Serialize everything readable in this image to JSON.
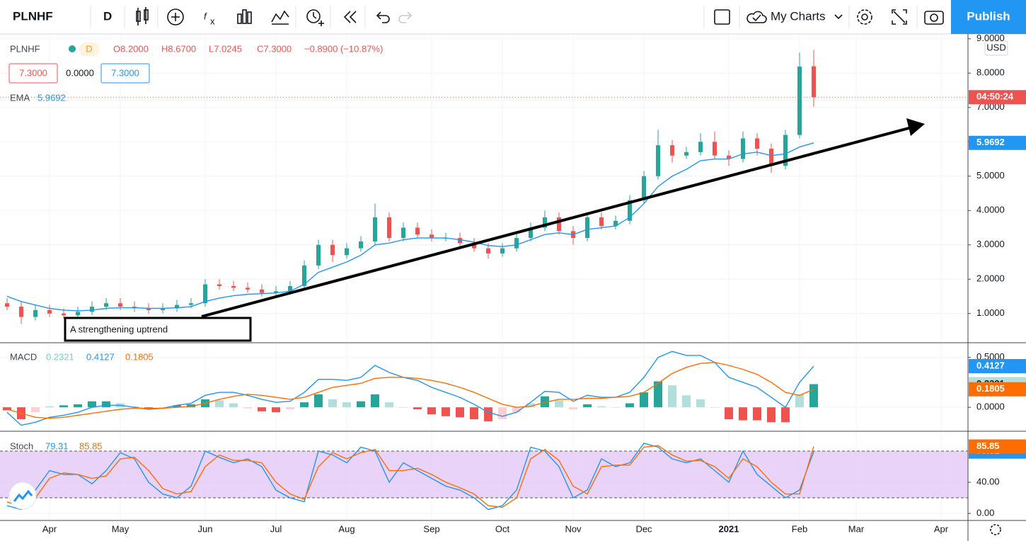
{
  "toolbar": {
    "symbol": "PLNHF",
    "interval": "D",
    "charts": "My Charts",
    "publish": "Publish"
  },
  "chart_data": [
    {
      "type": "candlestick",
      "title": "PLNHF",
      "interval": "D",
      "ohlc_labels": [
        "O8.2000",
        "H8.6700",
        "L7.0245",
        "C7.3000"
      ],
      "change_label": "−0.8900 (−10.87%)",
      "price_boxes": [
        "7.3000",
        "0.0000",
        "7.3000"
      ],
      "currency": "USD",
      "countdown": "04:50:24",
      "annotation": "A strengthening uptrend",
      "categories": [
        null,
        null,
        null,
        "Apr",
        null,
        null,
        null,
        null,
        "May",
        null,
        null,
        null,
        null,
        null,
        "Jun",
        null,
        null,
        null,
        null,
        "Jul",
        null,
        null,
        null,
        null,
        "Aug",
        null,
        null,
        null,
        null,
        null,
        "Sep",
        null,
        null,
        null,
        null,
        "Oct",
        null,
        null,
        null,
        null,
        "Nov",
        null,
        null,
        null,
        null,
        "Dec",
        null,
        null,
        null,
        null,
        null,
        "2021",
        null,
        null,
        null,
        null,
        "Feb",
        null,
        null,
        null,
        "Mar",
        null,
        null,
        null,
        null,
        null,
        "Apr",
        null
      ],
      "open": [
        1.3,
        1.2,
        0.9,
        1.1,
        1.0,
        0.95,
        1.05,
        1.2,
        1.3,
        1.2,
        1.15,
        1.1,
        1.15,
        1.25,
        1.3,
        1.85,
        1.8,
        1.75,
        1.7,
        1.6,
        1.65,
        1.8,
        2.4,
        3.0,
        2.7,
        2.9,
        3.1,
        3.8,
        3.2,
        3.5,
        3.3,
        3.2,
        3.2,
        3.05,
        2.9,
        2.75,
        2.9,
        3.2,
        3.5,
        3.8,
        3.4,
        3.2,
        3.8,
        3.55,
        3.7,
        4.3,
        5.0,
        5.9,
        5.6,
        5.7,
        6.0,
        5.6,
        5.5,
        6.1,
        5.8,
        5.3,
        6.2,
        8.2,
        null,
        null,
        null,
        null,
        null,
        null,
        null,
        null,
        null,
        null
      ],
      "high": [
        1.45,
        1.35,
        1.25,
        1.25,
        1.15,
        1.2,
        1.35,
        1.45,
        1.45,
        1.35,
        1.3,
        1.3,
        1.4,
        1.45,
        2.0,
        2.0,
        1.95,
        1.9,
        1.85,
        1.8,
        1.95,
        2.55,
        3.15,
        3.15,
        3.05,
        3.25,
        4.2,
        3.95,
        3.65,
        3.65,
        3.45,
        3.35,
        3.35,
        3.2,
        3.05,
        3.05,
        3.35,
        3.65,
        4.0,
        3.95,
        3.55,
        3.95,
        3.95,
        3.85,
        4.45,
        5.15,
        6.35,
        6.05,
        5.85,
        6.25,
        6.3,
        5.75,
        6.3,
        6.25,
        5.95,
        6.35,
        8.6,
        8.67,
        null,
        null,
        null,
        null,
        null,
        null,
        null,
        null,
        null,
        null
      ],
      "low": [
        1.1,
        0.7,
        0.8,
        0.9,
        0.85,
        0.85,
        0.95,
        1.1,
        1.1,
        1.05,
        1.0,
        1.0,
        1.05,
        1.15,
        1.2,
        1.7,
        1.65,
        1.6,
        1.5,
        1.5,
        1.55,
        1.7,
        2.3,
        2.5,
        2.6,
        2.8,
        3.0,
        3.1,
        3.1,
        3.2,
        3.1,
        3.1,
        2.95,
        2.8,
        2.6,
        2.65,
        2.8,
        3.1,
        3.4,
        3.3,
        3.0,
        3.1,
        3.45,
        3.45,
        3.6,
        4.2,
        4.9,
        5.4,
        5.5,
        5.6,
        5.5,
        5.3,
        5.4,
        5.6,
        5.1,
        5.2,
        6.1,
        7.0245,
        null,
        null,
        null,
        null,
        null,
        null,
        null,
        null,
        null,
        null
      ],
      "close": [
        1.2,
        0.9,
        1.1,
        1.0,
        0.95,
        1.05,
        1.2,
        1.3,
        1.2,
        1.15,
        1.1,
        1.15,
        1.25,
        1.3,
        1.85,
        1.8,
        1.75,
        1.7,
        1.6,
        1.65,
        1.8,
        2.4,
        3.0,
        2.7,
        2.9,
        3.1,
        3.8,
        3.2,
        3.5,
        3.3,
        3.2,
        3.2,
        3.05,
        2.9,
        2.75,
        2.9,
        3.2,
        3.5,
        3.8,
        3.4,
        3.2,
        3.8,
        3.55,
        3.7,
        4.3,
        5.0,
        5.9,
        5.6,
        5.7,
        6.0,
        5.6,
        5.5,
        6.1,
        5.8,
        5.3,
        6.2,
        8.19,
        7.3,
        null,
        null,
        null,
        null,
        null,
        null,
        null,
        null,
        null,
        null
      ],
      "up_color": "#26a69a",
      "down_color": "#ef5350",
      "series": [
        {
          "name": "EMA",
          "color": "#2196f3",
          "values": [
            1.5,
            1.35,
            1.25,
            1.15,
            1.1,
            1.08,
            1.1,
            1.15,
            1.17,
            1.17,
            1.15,
            1.15,
            1.17,
            1.2,
            1.35,
            1.45,
            1.52,
            1.56,
            1.58,
            1.6,
            1.65,
            1.85,
            2.2,
            2.35,
            2.5,
            2.7,
            3.0,
            3.05,
            3.15,
            3.2,
            3.2,
            3.2,
            3.15,
            3.08,
            2.98,
            2.95,
            3.0,
            3.15,
            3.3,
            3.35,
            3.3,
            3.45,
            3.5,
            3.55,
            3.8,
            4.2,
            4.7,
            5.0,
            5.2,
            5.45,
            5.5,
            5.5,
            5.65,
            5.7,
            5.6,
            5.65,
            5.85,
            5.9692,
            null,
            null,
            null,
            null,
            null,
            null,
            null,
            null,
            null,
            null
          ]
        }
      ],
      "ylim": [
        0.15,
        9.14
      ],
      "yticks": [
        {
          "value": 1,
          "label": "1.0000"
        },
        {
          "value": 2,
          "label": "2.0000"
        },
        {
          "value": 3,
          "label": "3.0000"
        },
        {
          "value": 4,
          "label": "4.0000"
        },
        {
          "value": 5,
          "label": "5.0000"
        },
        {
          "value": 6,
          "label": "6.0000"
        },
        {
          "value": 7,
          "label": "7.0000"
        },
        {
          "value": 8,
          "label": "8.0000"
        },
        {
          "value": 9,
          "label": "9.0000"
        }
      ],
      "grid": true
    },
    {
      "type": "macd",
      "title": "MACD",
      "series": [
        {
          "color": "#26a69a",
          "values": [
            -0.03,
            -0.12,
            -0.05,
            0.01,
            0.02,
            0.03,
            0.06,
            0.06,
            0.04,
            0.01,
            -0.01,
            0.0,
            0.02,
            0.03,
            0.08,
            0.07,
            0.04,
            -0.01,
            -0.04,
            -0.05,
            -0.02,
            0.05,
            0.13,
            0.08,
            0.05,
            0.06,
            0.13,
            0.05,
            0.0,
            -0.02,
            -0.07,
            -0.09,
            -0.1,
            -0.12,
            -0.14,
            -0.12,
            -0.05,
            0.04,
            0.11,
            0.07,
            -0.02,
            0.03,
            0.01,
            0.0,
            0.04,
            0.15,
            0.26,
            0.22,
            0.12,
            0.08,
            0.0,
            -0.12,
            -0.13,
            -0.13,
            -0.15,
            -0.15,
            0.13,
            0.2321,
            null,
            null,
            null,
            null,
            null,
            null,
            null,
            null,
            null,
            null
          ]
        },
        {
          "color": "#2196f3",
          "values": [
            -0.05,
            -0.18,
            -0.15,
            -0.1,
            -0.08,
            -0.05,
            0.0,
            0.02,
            0.02,
            0.0,
            -0.02,
            -0.01,
            0.02,
            0.04,
            0.12,
            0.15,
            0.15,
            0.12,
            0.08,
            0.05,
            0.06,
            0.15,
            0.28,
            0.28,
            0.27,
            0.3,
            0.42,
            0.35,
            0.3,
            0.27,
            0.2,
            0.15,
            0.1,
            0.03,
            -0.05,
            -0.09,
            -0.05,
            0.05,
            0.16,
            0.15,
            0.06,
            0.12,
            0.1,
            0.1,
            0.15,
            0.3,
            0.5,
            0.56,
            0.52,
            0.52,
            0.45,
            0.3,
            0.25,
            0.2,
            0.1,
            0.0,
            0.25,
            0.4127,
            null,
            null,
            null,
            null,
            null,
            null,
            null,
            null,
            null,
            null
          ]
        },
        {
          "color": "#ff6d00",
          "values": [
            -0.02,
            -0.06,
            -0.1,
            -0.11,
            -0.1,
            -0.08,
            -0.06,
            -0.04,
            -0.02,
            -0.01,
            -0.01,
            -0.01,
            0.0,
            0.01,
            0.04,
            0.08,
            0.11,
            0.13,
            0.12,
            0.1,
            0.08,
            0.1,
            0.15,
            0.2,
            0.22,
            0.24,
            0.29,
            0.3,
            0.3,
            0.29,
            0.27,
            0.24,
            0.2,
            0.15,
            0.09,
            0.03,
            0.0,
            0.01,
            0.05,
            0.08,
            0.08,
            0.09,
            0.09,
            0.1,
            0.11,
            0.15,
            0.24,
            0.34,
            0.4,
            0.44,
            0.45,
            0.42,
            0.38,
            0.33,
            0.25,
            0.15,
            0.12,
            0.1805,
            null,
            null,
            null,
            null,
            null,
            null,
            null,
            null,
            null,
            null
          ]
        }
      ],
      "ylim": [
        -0.24,
        0.64
      ],
      "yticks": [
        {
          "value": 0,
          "label": "0.0000"
        },
        {
          "value": 0.5,
          "label": "0.5000"
        }
      ]
    },
    {
      "type": "stoch",
      "title": "Stoch",
      "series": [
        {
          "color": "#2196f3",
          "values": [
            10,
            5,
            30,
            55,
            50,
            50,
            38,
            55,
            78,
            70,
            40,
            25,
            20,
            35,
            80,
            72,
            65,
            70,
            60,
            30,
            20,
            15,
            80,
            75,
            65,
            85,
            80,
            40,
            65,
            55,
            45,
            35,
            30,
            20,
            5,
            10,
            30,
            85,
            80,
            60,
            20,
            30,
            70,
            60,
            65,
            90,
            85,
            70,
            65,
            70,
            55,
            40,
            80,
            50,
            35,
            20,
            30,
            79.31,
            null,
            null,
            null,
            null,
            null,
            null,
            null,
            null,
            null,
            null
          ]
        },
        {
          "color": "#ff6d00",
          "values": [
            15,
            8,
            20,
            45,
            52,
            50,
            45,
            48,
            70,
            72,
            55,
            32,
            25,
            28,
            60,
            75,
            68,
            68,
            65,
            40,
            25,
            18,
            60,
            78,
            70,
            78,
            82,
            55,
            55,
            58,
            50,
            40,
            33,
            25,
            10,
            8,
            20,
            70,
            82,
            68,
            35,
            25,
            60,
            62,
            62,
            85,
            87,
            75,
            67,
            68,
            60,
            45,
            70,
            60,
            40,
            25,
            25,
            85.85,
            null,
            null,
            null,
            null,
            null,
            null,
            null,
            null,
            null,
            null
          ]
        }
      ],
      "band": [
        20,
        80
      ],
      "ylim": [
        -9,
        104.5
      ],
      "yticks": [
        {
          "value": 0,
          "label": "0.00"
        },
        {
          "value": 40,
          "label": "40.00"
        }
      ]
    }
  ]
}
